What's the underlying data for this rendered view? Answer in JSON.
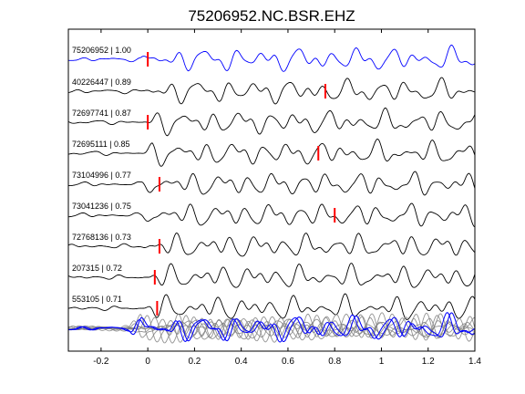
{
  "chart_data": {
    "type": "line",
    "title": "75206952.NC.BSR.EHZ",
    "xlabel": "",
    "ylabel": "",
    "xlim": [
      -0.34,
      1.4
    ],
    "xticks": [
      -0.2,
      0,
      0.2,
      0.4,
      0.6,
      0.8,
      1,
      1.2,
      1.4
    ],
    "xtick_labels": [
      "-0.2",
      "0",
      "0.2",
      "0.4",
      "0.6",
      "0.8",
      "1",
      "1.2",
      "1.4"
    ],
    "grid": false,
    "legend": "none",
    "colors": {
      "reference": "#0000ff",
      "trace": "#000000",
      "marker": "#ff0000",
      "stack": "#808080"
    },
    "traces": [
      {
        "label": "75206952 | 1.00",
        "marker_time": 0.0,
        "seed": 1.3,
        "reference": true
      },
      {
        "label": "40226447 | 0.89",
        "marker_time": 0.76,
        "seed": 2.1
      },
      {
        "label": "72697741 | 0.87",
        "marker_time": 0.0,
        "seed": 3.7
      },
      {
        "label": "72695111 | 0.85",
        "marker_time": 0.73,
        "seed": 4.4
      },
      {
        "label": "73104996 | 0.77",
        "marker_time": 0.05,
        "seed": 5.9
      },
      {
        "label": "73041236 | 0.75",
        "marker_time": 0.8,
        "seed": 6.2
      },
      {
        "label": "72768136 | 0.73",
        "marker_time": 0.05,
        "seed": 7.8
      },
      {
        "label": "207315 | 0.72",
        "marker_time": 0.03,
        "seed": 8.5
      },
      {
        "label": "553105 | 0.71",
        "marker_time": 0.04,
        "seed": 9.1
      }
    ],
    "stack": {
      "gray_count": 8,
      "blue_count": 2
    }
  }
}
